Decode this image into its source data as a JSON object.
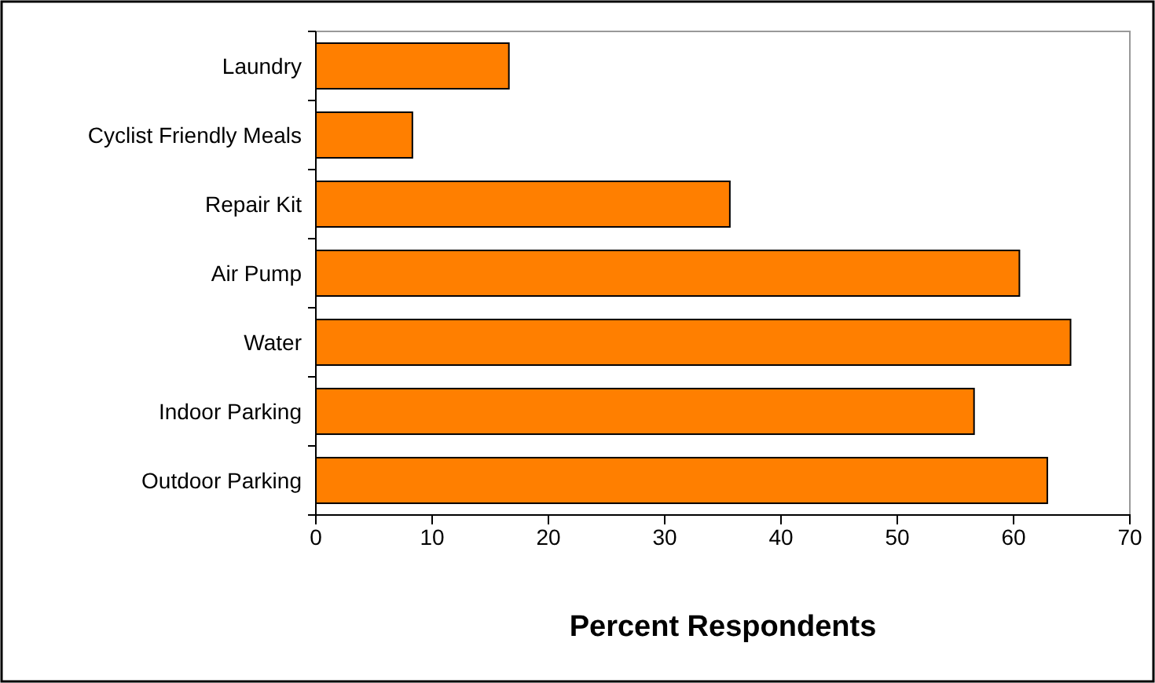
{
  "chart_data": {
    "type": "bar",
    "orientation": "horizontal",
    "xlabel": "Percent Respondents",
    "categories": [
      "Laundry",
      "Cyclist Friendly Meals",
      "Repair Kit",
      "Air Pump",
      "Water",
      "Indoor Parking",
      "Outdoor Parking"
    ],
    "values": [
      16.6,
      8.3,
      35.6,
      60.5,
      64.9,
      56.6,
      62.9
    ],
    "color": "#ff7f00",
    "xlim": [
      0,
      70
    ],
    "xticks": [
      0,
      10,
      20,
      30,
      40,
      50,
      60,
      70
    ]
  }
}
